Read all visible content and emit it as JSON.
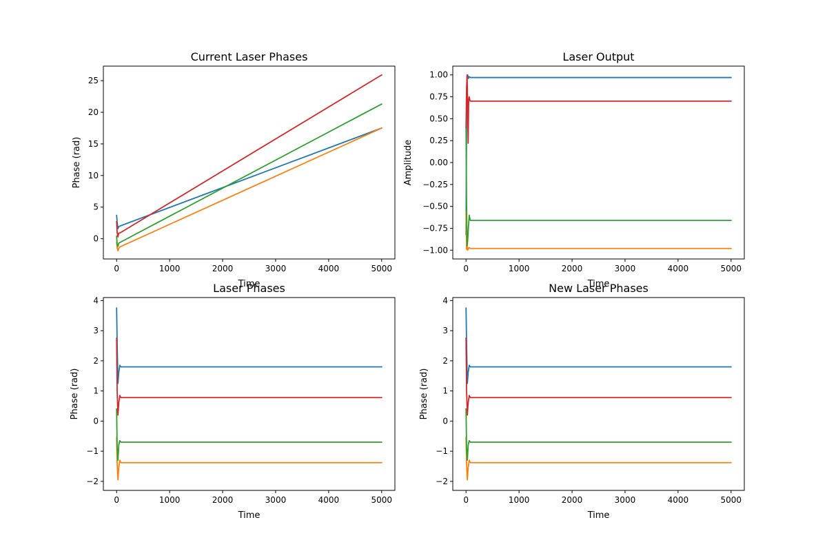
{
  "chart_data": [
    {
      "type": "line",
      "title": "Current Laser Phases",
      "xlabel": "Time",
      "ylabel": "Phase (rad)",
      "xlim": [
        -250,
        5250
      ],
      "ylim": [
        -3.2,
        27.3
      ],
      "xticks": [
        0,
        1000,
        2000,
        3000,
        4000,
        5000
      ],
      "yticks": [
        0,
        5,
        10,
        15,
        20,
        25
      ],
      "grid": false,
      "series": [
        {
          "color": "#1f77b4",
          "x": [
            0,
            10,
            25,
            40,
            60,
            5000
          ],
          "y": [
            3.7,
            2.6,
            1.6,
            1.9,
            2.0,
            17.5
          ]
        },
        {
          "color": "#ff7f0e",
          "x": [
            0,
            10,
            25,
            40,
            60,
            5000
          ],
          "y": [
            -0.6,
            -1.4,
            -1.9,
            -1.5,
            -1.3,
            17.5
          ]
        },
        {
          "color": "#2ca02c",
          "x": [
            0,
            10,
            25,
            40,
            60,
            5000
          ],
          "y": [
            0.4,
            -0.9,
            -1.2,
            -0.7,
            -0.6,
            21.3
          ]
        },
        {
          "color": "#d62728",
          "x": [
            0,
            10,
            25,
            40,
            60,
            5000
          ],
          "y": [
            2.7,
            1.0,
            0.3,
            0.9,
            0.9,
            25.9
          ]
        }
      ]
    },
    {
      "type": "line",
      "title": "Laser Output",
      "xlabel": "Time",
      "ylabel": "Amplitude",
      "xlim": [
        -250,
        5250
      ],
      "ylim": [
        -1.1,
        1.1
      ],
      "xticks": [
        0,
        1000,
        2000,
        3000,
        4000,
        5000
      ],
      "yticks": [
        -1.0,
        -0.75,
        -0.5,
        -0.25,
        0.0,
        0.25,
        0.5,
        0.75,
        1.0
      ],
      "yticklabels": [
        "−1.00",
        "−0.75",
        "−0.50",
        "−0.25",
        "0.00",
        "0.25",
        "0.50",
        "0.75",
        "1.00"
      ],
      "grid": false,
      "series": [
        {
          "color": "#1f77b4",
          "x": [
            0,
            10,
            20,
            30,
            45,
            60,
            80,
            100,
            5000
          ],
          "y": [
            -0.82,
            0.5,
            0.99,
            1.0,
            0.96,
            0.98,
            0.97,
            0.97,
            0.97
          ]
        },
        {
          "color": "#ff7f0e",
          "x": [
            0,
            10,
            20,
            30,
            45,
            60,
            80,
            100,
            5000
          ],
          "y": [
            -0.56,
            -0.99,
            -0.94,
            -1.0,
            -0.98,
            -0.97,
            -0.98,
            -0.98,
            -0.98
          ]
        },
        {
          "color": "#2ca02c",
          "x": [
            0,
            10,
            20,
            30,
            45,
            60,
            80,
            100,
            5000
          ],
          "y": [
            0.39,
            -0.5,
            -0.95,
            -0.9,
            -0.74,
            -0.6,
            -0.66,
            -0.66,
            -0.66
          ]
        },
        {
          "color": "#d62728",
          "x": [
            0,
            10,
            20,
            30,
            40,
            50,
            60,
            70,
            80,
            100,
            5000
          ],
          "y": [
            0.4,
            0.85,
            1.0,
            0.65,
            0.22,
            0.72,
            0.75,
            0.72,
            0.7,
            0.7,
            0.7
          ]
        }
      ]
    },
    {
      "type": "line",
      "title": "Laser Phases",
      "xlabel": "Time",
      "ylabel": "Phase (rad)",
      "xlim": [
        -250,
        5250
      ],
      "ylim": [
        -2.3,
        4.1
      ],
      "xticks": [
        0,
        1000,
        2000,
        3000,
        4000,
        5000
      ],
      "yticks": [
        -2,
        -1,
        0,
        1,
        2,
        3,
        4
      ],
      "yticklabels": [
        "−2",
        "−1",
        "0",
        "1",
        "2",
        "3",
        "4"
      ],
      "grid": false,
      "series": [
        {
          "color": "#1f77b4",
          "x": [
            0,
            10,
            25,
            40,
            60,
            80,
            100,
            5000
          ],
          "y": [
            3.75,
            2.6,
            1.25,
            1.6,
            1.85,
            1.8,
            1.8,
            1.8
          ]
        },
        {
          "color": "#ff7f0e",
          "x": [
            0,
            10,
            25,
            40,
            60,
            80,
            100,
            5000
          ],
          "y": [
            -0.55,
            -1.4,
            -1.95,
            -1.55,
            -1.3,
            -1.38,
            -1.38,
            -1.38
          ]
        },
        {
          "color": "#2ca02c",
          "x": [
            0,
            10,
            25,
            40,
            60,
            80,
            100,
            5000
          ],
          "y": [
            0.4,
            -0.9,
            -1.3,
            -0.8,
            -0.65,
            -0.7,
            -0.7,
            -0.7
          ]
        },
        {
          "color": "#d62728",
          "x": [
            0,
            10,
            25,
            40,
            60,
            80,
            100,
            5000
          ],
          "y": [
            2.75,
            1.0,
            0.2,
            0.6,
            0.85,
            0.78,
            0.78,
            0.78
          ]
        }
      ]
    },
    {
      "type": "line",
      "title": "New Laser Phases",
      "xlabel": "Time",
      "ylabel": "Phase (rad)",
      "xlim": [
        -250,
        5250
      ],
      "ylim": [
        -2.3,
        4.1
      ],
      "xticks": [
        0,
        1000,
        2000,
        3000,
        4000,
        5000
      ],
      "yticks": [
        -2,
        -1,
        0,
        1,
        2,
        3,
        4
      ],
      "yticklabels": [
        "−2",
        "−1",
        "0",
        "1",
        "2",
        "3",
        "4"
      ],
      "grid": false,
      "series": [
        {
          "color": "#1f77b4",
          "x": [
            0,
            10,
            25,
            40,
            60,
            80,
            100,
            5000
          ],
          "y": [
            3.75,
            2.6,
            1.25,
            1.6,
            1.85,
            1.8,
            1.8,
            1.8
          ]
        },
        {
          "color": "#ff7f0e",
          "x": [
            0,
            10,
            25,
            40,
            60,
            80,
            100,
            5000
          ],
          "y": [
            -0.55,
            -1.4,
            -1.95,
            -1.55,
            -1.3,
            -1.38,
            -1.38,
            -1.38
          ]
        },
        {
          "color": "#2ca02c",
          "x": [
            0,
            10,
            25,
            40,
            60,
            80,
            100,
            5000
          ],
          "y": [
            0.4,
            -0.9,
            -1.3,
            -0.8,
            -0.65,
            -0.7,
            -0.7,
            -0.7
          ]
        },
        {
          "color": "#d62728",
          "x": [
            0,
            10,
            25,
            40,
            60,
            80,
            100,
            5000
          ],
          "y": [
            2.75,
            1.0,
            0.2,
            0.6,
            0.85,
            0.78,
            0.78,
            0.78
          ]
        }
      ]
    }
  ]
}
